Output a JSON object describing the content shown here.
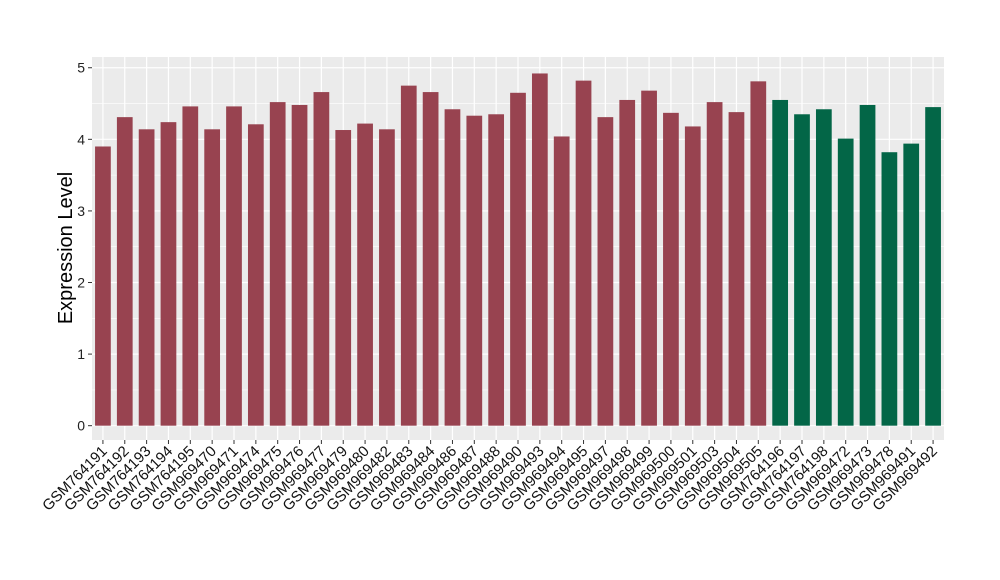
{
  "chart_data": {
    "type": "bar",
    "title": "",
    "xlabel": "",
    "ylabel": "Expression Level",
    "ylim": [
      -0.2,
      5.15
    ],
    "yticks": [
      0,
      1,
      2,
      3,
      4,
      5
    ],
    "grid": true,
    "legend": "none",
    "colors": {
      "group_a": "#984350",
      "group_b": "#036647",
      "panel_bg": "#EBEBEB",
      "grid": "#FFFFFF"
    },
    "categories": [
      "GSM764191",
      "GSM764192",
      "GSM764193",
      "GSM764194",
      "GSM764195",
      "GSM969470",
      "GSM969471",
      "GSM969474",
      "GSM969475",
      "GSM969476",
      "GSM969477",
      "GSM969479",
      "GSM969480",
      "GSM969482",
      "GSM969483",
      "GSM969484",
      "GSM969486",
      "GSM969487",
      "GSM969488",
      "GSM969490",
      "GSM969493",
      "GSM969494",
      "GSM969495",
      "GSM969497",
      "GSM969498",
      "GSM969499",
      "GSM969500",
      "GSM969501",
      "GSM969503",
      "GSM969504",
      "GSM969505",
      "GSM764196",
      "GSM764197",
      "GSM764198",
      "GSM969472",
      "GSM969473",
      "GSM969478",
      "GSM969491",
      "GSM969492"
    ],
    "values": [
      3.9,
      4.31,
      4.14,
      4.24,
      4.46,
      4.14,
      4.46,
      4.21,
      4.52,
      4.48,
      4.66,
      4.13,
      4.22,
      4.14,
      4.75,
      4.66,
      4.42,
      4.33,
      4.35,
      4.65,
      4.92,
      4.04,
      4.82,
      4.31,
      4.55,
      4.68,
      4.37,
      4.18,
      4.52,
      4.38,
      4.81,
      4.55,
      4.35,
      4.42,
      4.01,
      4.48,
      3.82,
      3.94,
      4.45
    ],
    "groups": [
      "a",
      "a",
      "a",
      "a",
      "a",
      "a",
      "a",
      "a",
      "a",
      "a",
      "a",
      "a",
      "a",
      "a",
      "a",
      "a",
      "a",
      "a",
      "a",
      "a",
      "a",
      "a",
      "a",
      "a",
      "a",
      "a",
      "a",
      "a",
      "a",
      "a",
      "a",
      "b",
      "b",
      "b",
      "b",
      "b",
      "b",
      "b",
      "b"
    ]
  }
}
